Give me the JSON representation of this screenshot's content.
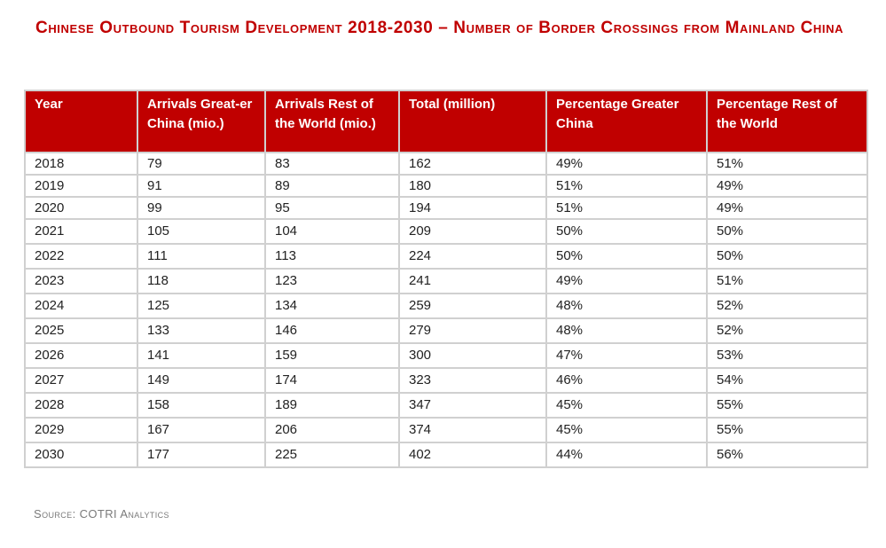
{
  "title": "Chinese Outbound Tourism Development 2018-2030 – Number of Border Crossings from Mainland China",
  "table": {
    "headers": [
      "Year",
      "Arrivals Great-er China (mio.)",
      "Arrivals Rest of the World (mio.)",
      "Total (million)",
      "Percentage Greater China",
      "Percentage Rest of the World"
    ],
    "rows": [
      [
        "2018",
        "79",
        "83",
        "162",
        "49%",
        "51%"
      ],
      [
        "2019",
        "91",
        "89",
        "180",
        "51%",
        "49%"
      ],
      [
        "2020",
        "99",
        "95",
        "194",
        "51%",
        "49%"
      ],
      [
        "2021",
        "105",
        "104",
        "209",
        "50%",
        "50%"
      ],
      [
        "2022",
        "111",
        "113",
        "224",
        "50%",
        "50%"
      ],
      [
        "2023",
        "118",
        "123",
        "241",
        "49%",
        "51%"
      ],
      [
        "2024",
        "125",
        "134",
        "259",
        "48%",
        "52%"
      ],
      [
        "2025",
        "133",
        "146",
        "279",
        "48%",
        "52%"
      ],
      [
        "2026",
        "141",
        "159",
        "300",
        "47%",
        "53%"
      ],
      [
        "2027",
        "149",
        "174",
        "323",
        "46%",
        "54%"
      ],
      [
        "2028",
        "158",
        "189",
        "347",
        "45%",
        "55%"
      ],
      [
        "2029",
        "167",
        "206",
        "374",
        "45%",
        "55%"
      ],
      [
        "2030",
        "177",
        "225",
        "402",
        "44%",
        "56%"
      ]
    ]
  },
  "source": "Source: COTRI Analytics",
  "colors": {
    "accent": "#c00000",
    "grid": "#d0d0d0",
    "source_text": "#7a7a7a"
  }
}
